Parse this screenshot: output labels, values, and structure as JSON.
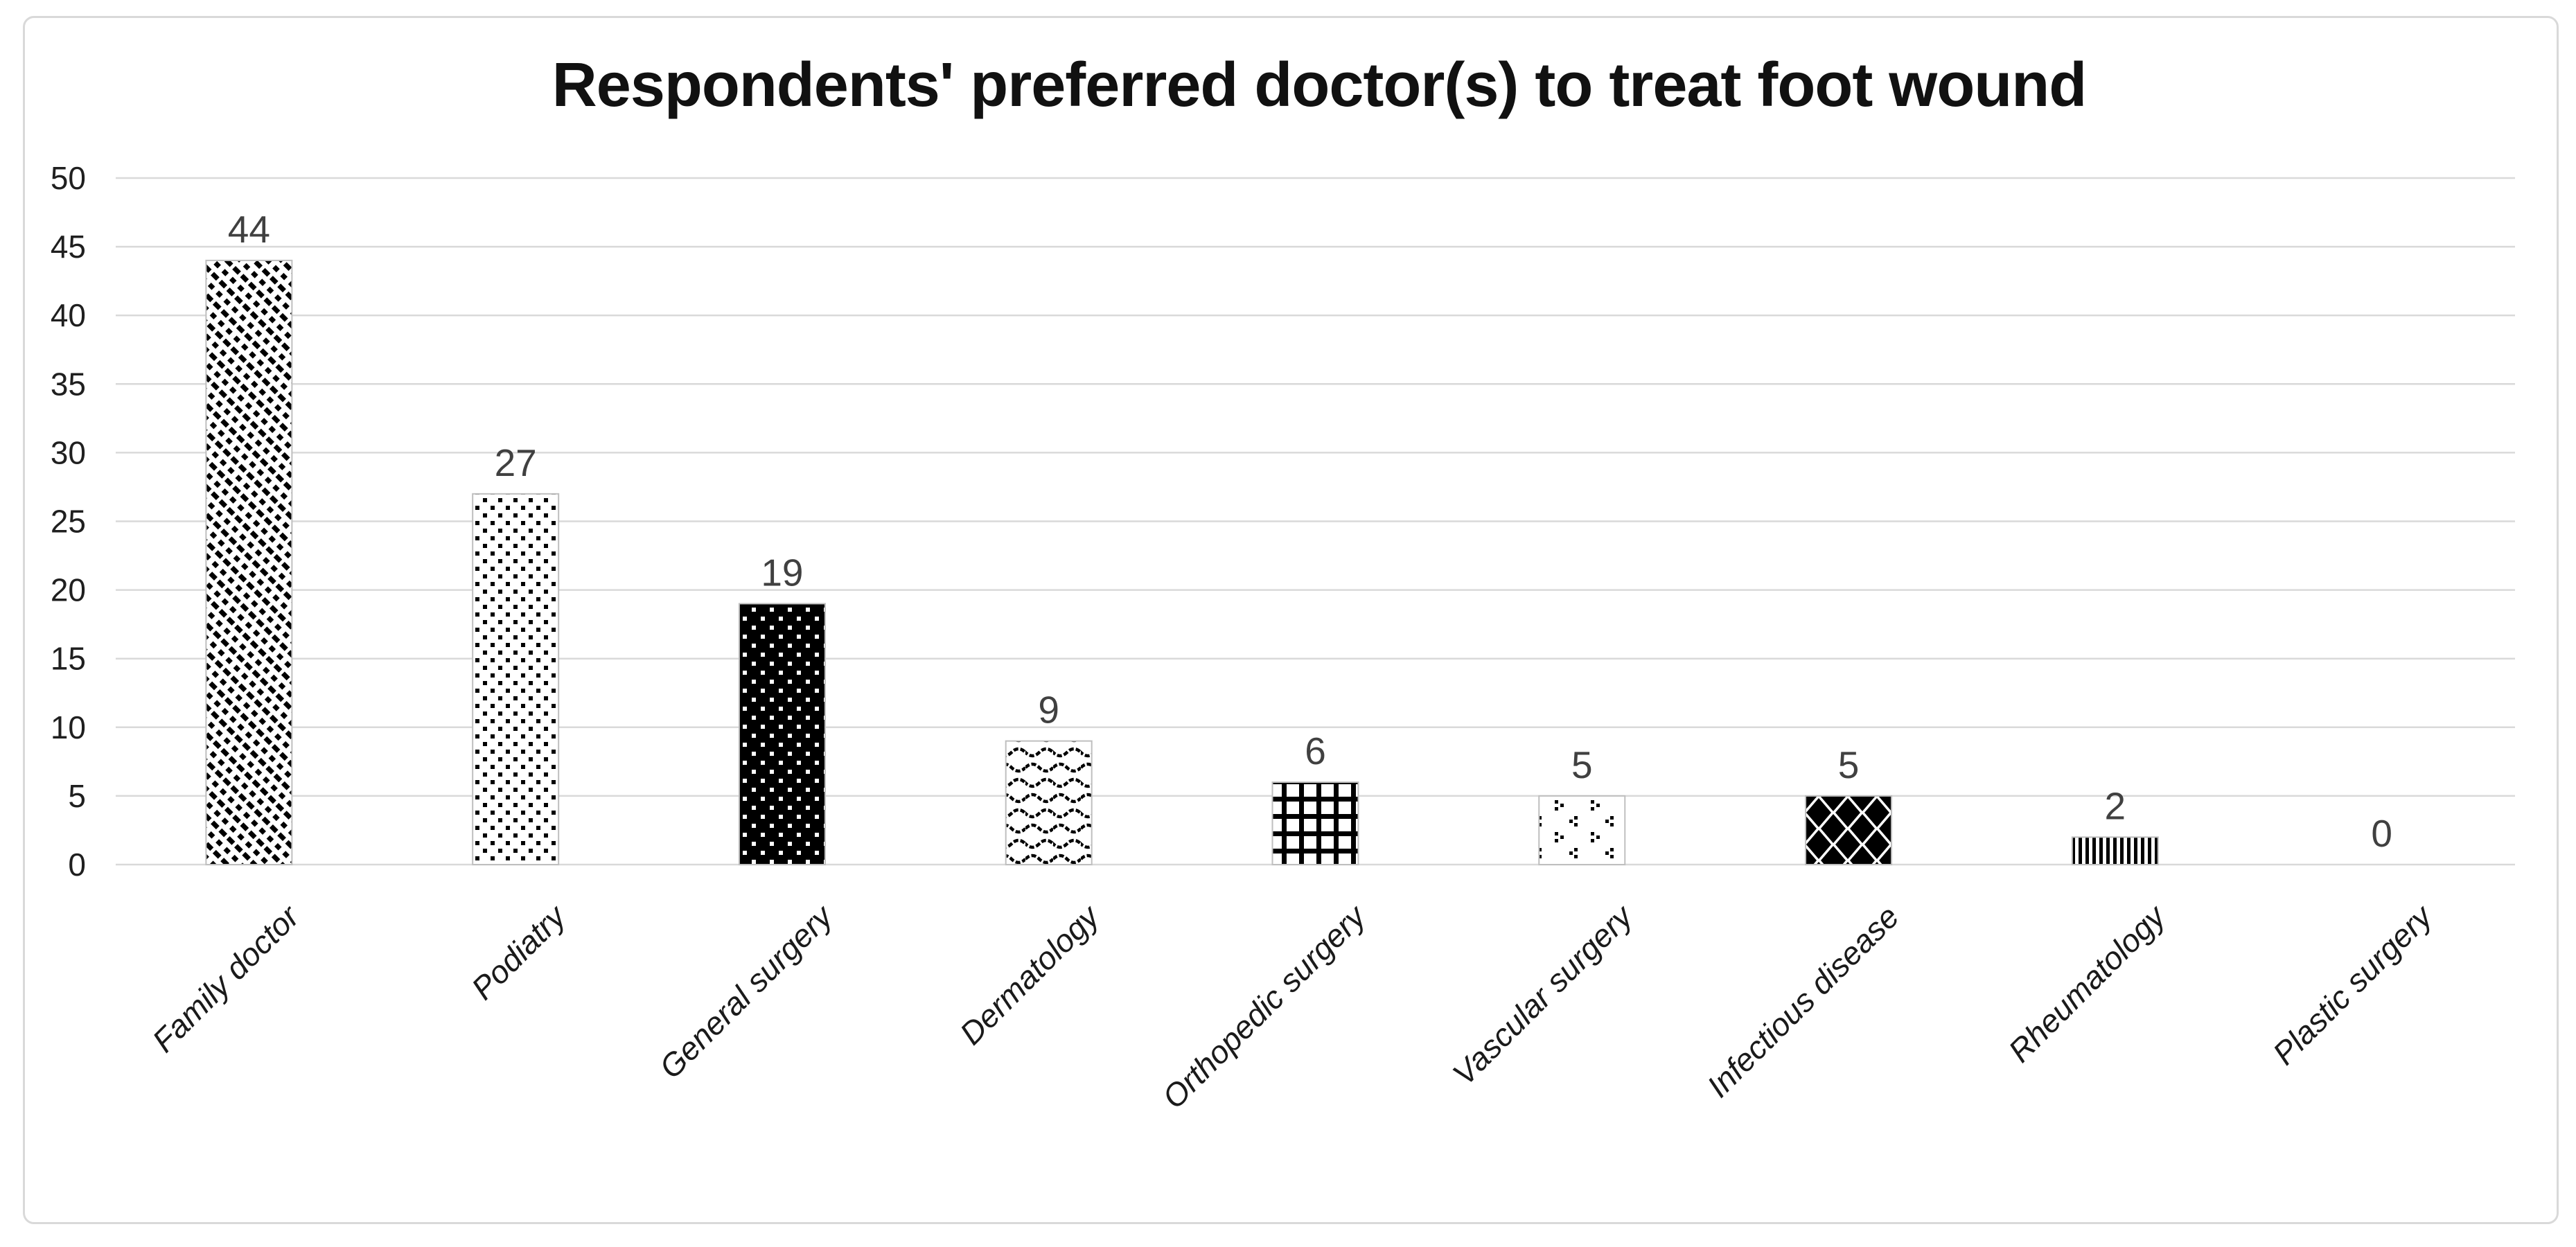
{
  "chart_data": {
    "type": "bar",
    "title": "Respondents' preferred doctor(s) to treat foot wound",
    "categories": [
      "Family doctor",
      "Podiatry",
      "General surgery",
      "Dermatology",
      "Orthopedic surgery",
      "Vascular surgery",
      "Infectious disease",
      "Rheumatology",
      "Plastic surgery"
    ],
    "values": [
      44,
      27,
      19,
      9,
      6,
      5,
      5,
      2,
      0
    ],
    "data_labels": [
      "44",
      "27",
      "19",
      "9",
      "6",
      "5",
      "5",
      "2",
      "0"
    ],
    "bar_patterns": [
      "diagonal-dashed-stripes",
      "black-dots",
      "white-dots-on-black",
      "wavy-lines",
      "bold-grid",
      "scattered-dot-clusters",
      "black-diamonds",
      "vertical-stripes",
      "none"
    ],
    "xlabel": "",
    "ylabel": "",
    "ylim": [
      0,
      50
    ],
    "yticks": [
      0,
      5,
      10,
      15,
      20,
      25,
      30,
      35,
      40,
      45,
      50
    ],
    "grid": true,
    "legend": false,
    "colors": {
      "pattern_foreground": "#000000",
      "pattern_background": "#ffffff",
      "bar_outline": "#bfbfbf",
      "gridline": "#d9d9d9",
      "axis_tick_text": "#1f1f1f",
      "data_label_text": "#404040",
      "title_text": "#111111",
      "chart_border": "#d9d9d9"
    }
  }
}
